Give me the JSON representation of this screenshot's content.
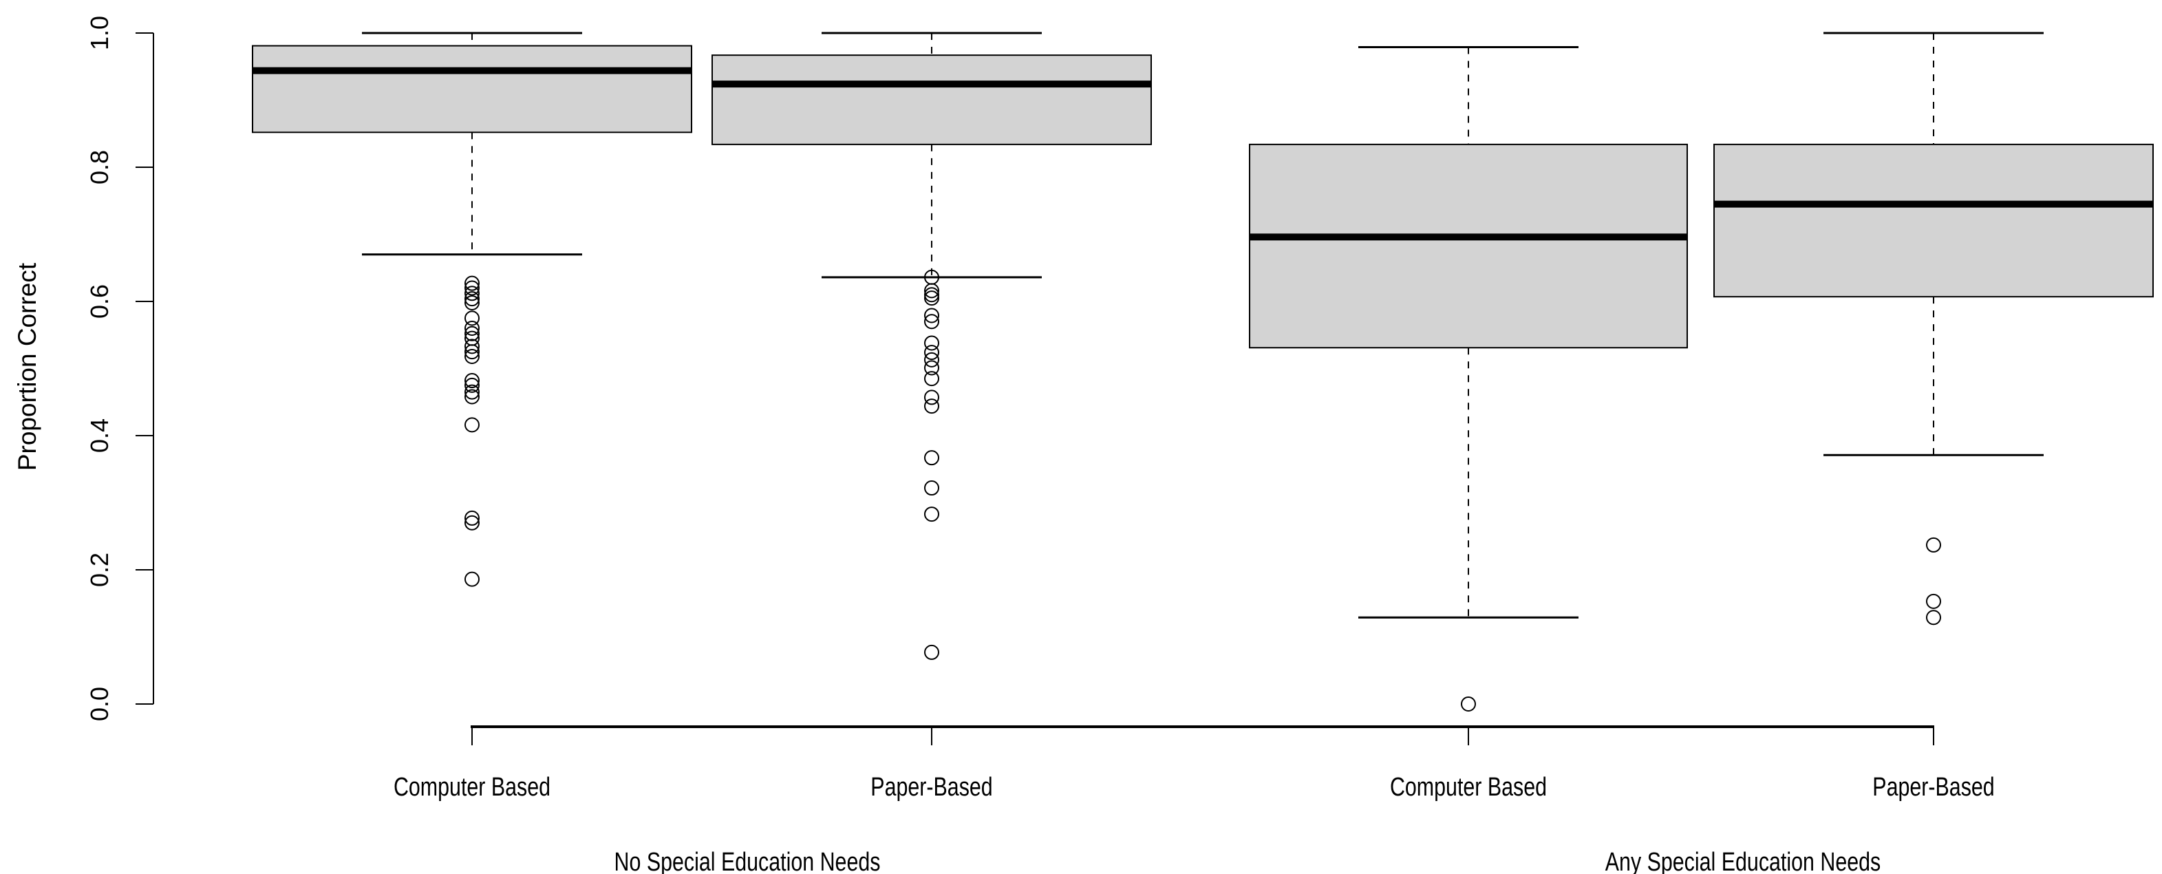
{
  "chart_data": {
    "type": "box",
    "title": "",
    "xlabel": "",
    "ylabel": "Proportion Correct",
    "ylim": [
      0.0,
      1.0
    ],
    "yticks": [
      "0.0",
      "0.2",
      "0.4",
      "0.6",
      "0.8",
      "1.0"
    ],
    "grid": false,
    "legend": null,
    "groups": [
      {
        "label": "No Special Education Needs",
        "categories": [
          "Computer Based",
          "Paper-Based"
        ]
      },
      {
        "label": "Any Special Education Needs",
        "categories": [
          "Computer Based",
          "Paper-Based"
        ]
      }
    ],
    "categories": [
      "Computer Based",
      "Paper-Based",
      "Computer Based",
      "Paper-Based"
    ],
    "series": [
      {
        "name": "No Special Education Needs - Computer Based",
        "whisker_low": 0.67,
        "q1": 0.852,
        "median": 0.944,
        "q3": 0.981,
        "whisker_high": 1.0,
        "outliers": [
          0.627,
          0.62,
          0.612,
          0.604,
          0.598,
          0.575,
          0.56,
          0.552,
          0.545,
          0.533,
          0.525,
          0.518,
          0.482,
          0.475,
          0.465,
          0.458,
          0.416,
          0.277,
          0.27,
          0.186
        ]
      },
      {
        "name": "No Special Education Needs - Paper-Based",
        "whisker_low": 0.636,
        "q1": 0.834,
        "median": 0.924,
        "q3": 0.967,
        "whisker_high": 1.0,
        "outliers": [
          0.636,
          0.616,
          0.61,
          0.605,
          0.579,
          0.57,
          0.538,
          0.524,
          0.513,
          0.501,
          0.485,
          0.457,
          0.444,
          0.367,
          0.322,
          0.283,
          0.077
        ]
      },
      {
        "name": "Any Special Education Needs - Computer Based",
        "whisker_low": 0.129,
        "q1": 0.531,
        "median": 0.696,
        "q3": 0.834,
        "whisker_high": 0.979,
        "outliers": [
          0.0
        ]
      },
      {
        "name": "Any Special Education Needs - Paper-Based",
        "whisker_low": 0.371,
        "q1": 0.607,
        "median": 0.745,
        "q3": 0.834,
        "whisker_high": 1.0,
        "outliers": [
          0.237,
          0.153,
          0.129
        ]
      }
    ],
    "colors": {
      "box_fill": "#d3d3d3",
      "stroke": "#000000",
      "background": "#ffffff"
    }
  }
}
